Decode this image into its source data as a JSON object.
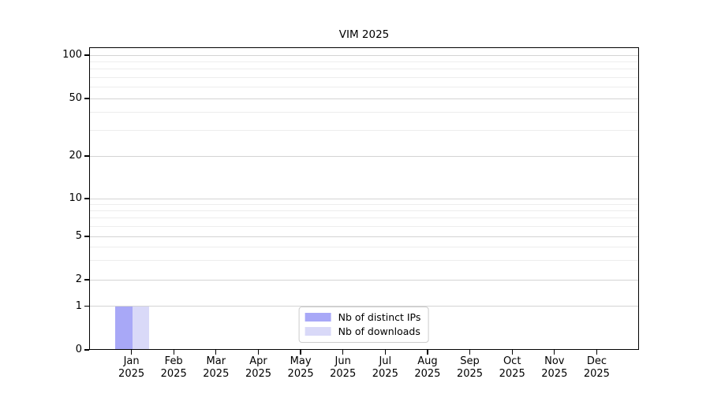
{
  "chart_data": {
    "type": "bar",
    "title": "VIM 2025",
    "categories": [
      {
        "month": "Jan",
        "year": "2025"
      },
      {
        "month": "Feb",
        "year": "2025"
      },
      {
        "month": "Mar",
        "year": "2025"
      },
      {
        "month": "Apr",
        "year": "2025"
      },
      {
        "month": "May",
        "year": "2025"
      },
      {
        "month": "Jun",
        "year": "2025"
      },
      {
        "month": "Jul",
        "year": "2025"
      },
      {
        "month": "Aug",
        "year": "2025"
      },
      {
        "month": "Sep",
        "year": "2025"
      },
      {
        "month": "Oct",
        "year": "2025"
      },
      {
        "month": "Nov",
        "year": "2025"
      },
      {
        "month": "Dec",
        "year": "2025"
      }
    ],
    "series": [
      {
        "name": "Nb of distinct IPs",
        "color": "#a8a8f7",
        "values": [
          1,
          0,
          0,
          0,
          0,
          0,
          0,
          0,
          0,
          0,
          0,
          0
        ]
      },
      {
        "name": "Nb of downloads",
        "color": "#d9d9f8",
        "values": [
          1,
          0,
          0,
          0,
          0,
          0,
          0,
          0,
          0,
          0,
          0,
          0
        ]
      }
    ],
    "yticks": [
      0,
      1,
      2,
      5,
      10,
      20,
      50,
      100
    ],
    "ylim": [
      0,
      115
    ],
    "yscale": "symlog-like (linear 0-1, log above)",
    "grid": "horizontal major + log minor lines",
    "legend": {
      "position": "bottom-center",
      "labels": [
        "Nb of distinct IPs",
        "Nb of downloads"
      ]
    },
    "xlabel": "",
    "ylabel": ""
  }
}
